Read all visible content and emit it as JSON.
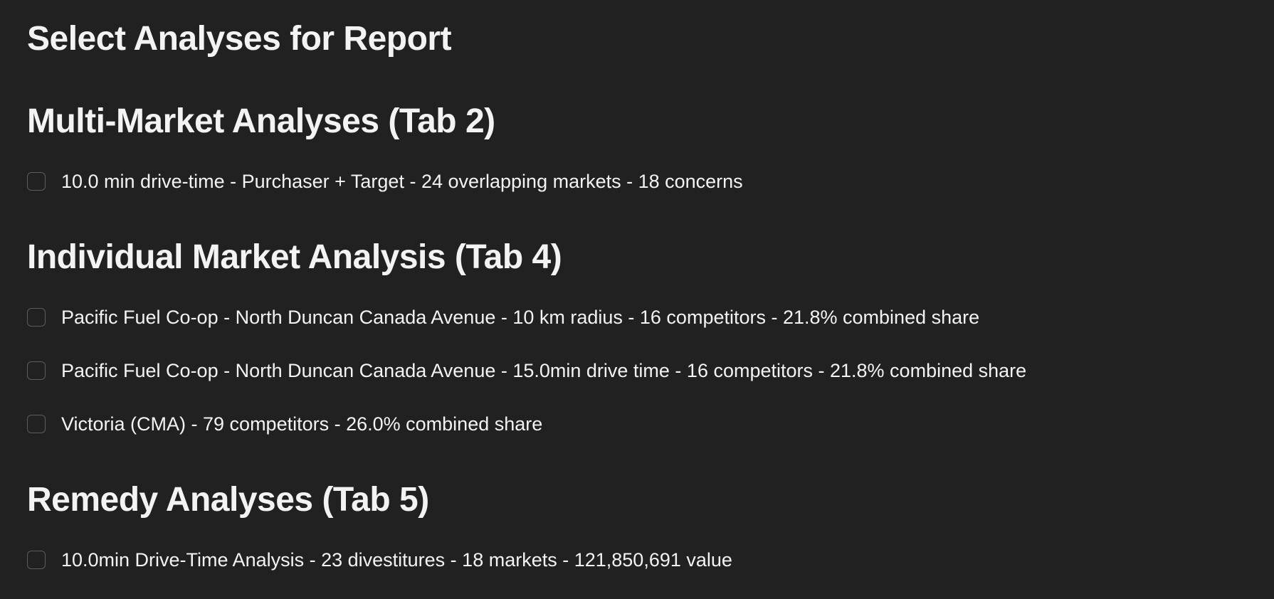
{
  "page_title": "Select Analyses for Report",
  "sections": [
    {
      "title": "Multi-Market Analyses (Tab 2)",
      "options": [
        {
          "label": "10.0 min drive-time - Purchaser + Target - 24 overlapping markets - 18 concerns",
          "checked": false
        }
      ]
    },
    {
      "title": "Individual Market Analysis (Tab 4)",
      "options": [
        {
          "label": "Pacific Fuel Co-op - North Duncan Canada Avenue - 10 km radius - 16 competitors - 21.8% combined share",
          "checked": false
        },
        {
          "label": "Pacific Fuel Co-op - North Duncan Canada Avenue - 15.0min drive time - 16 competitors - 21.8% combined share",
          "checked": false
        },
        {
          "label": "Victoria (CMA) - 79 competitors - 26.0% combined share",
          "checked": false
        }
      ]
    },
    {
      "title": "Remedy Analyses (Tab 5)",
      "options": [
        {
          "label": "10.0min Drive-Time Analysis - 23 divestitures - 18 markets - 121,850,691 value",
          "checked": false
        }
      ]
    }
  ],
  "colors": {
    "background": "#212121",
    "text": "#f3f3f3",
    "checkbox_border": "#5c5c5c"
  }
}
